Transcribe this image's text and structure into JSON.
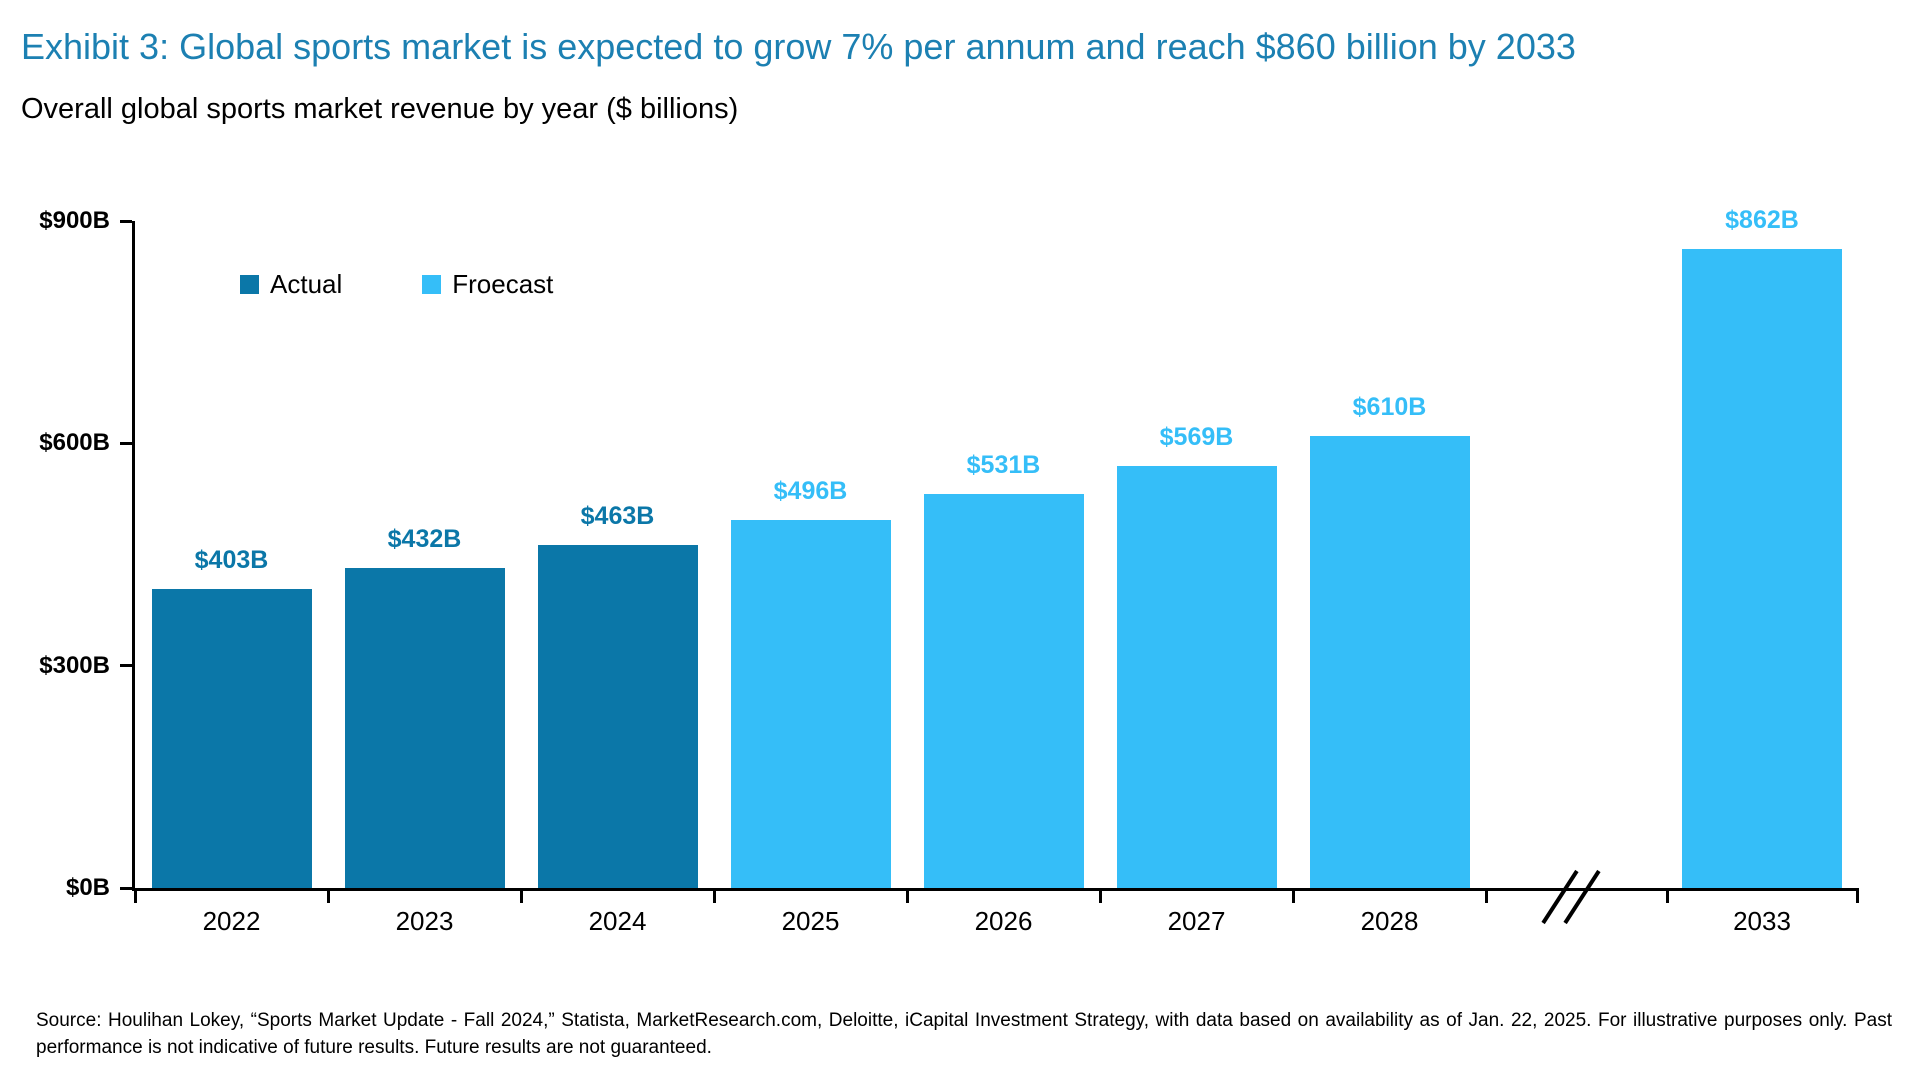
{
  "title": "Exhibit 3: Global sports market is expected to grow 7% per annum and reach $860 billion by 2033",
  "subtitle": "Overall global sports market revenue by year ($ billions)",
  "legend": [
    {
      "label": "Actual",
      "color": "#0B77A8"
    },
    {
      "label": "Froecast",
      "color": "#35BEF8"
    }
  ],
  "colors": {
    "actual": "#0B77A8",
    "forecast": "#35BEF8",
    "title": "#1C80B2",
    "axis": "#000000"
  },
  "source": "Source: Houlihan Lokey, “Sports Market Update - Fall 2024,” Statista, MarketResearch.com, Deloitte, iCapital Investment Strategy, with data based on availability as of Jan. 22, 2025. For illustrative purposes only. Past performance is not indicative of future results. Future results are not guaranteed.",
  "chart_data": {
    "type": "bar",
    "title": "Overall global sports market revenue by year ($ billions)",
    "xlabel": "",
    "ylabel": "",
    "categories": [
      "2022",
      "2023",
      "2024",
      "2025",
      "2026",
      "2027",
      "2028",
      "2033"
    ],
    "series": [
      {
        "name": "Actual",
        "values": [
          403,
          432,
          463,
          null,
          null,
          null,
          null,
          null
        ]
      },
      {
        "name": "Froecast",
        "values": [
          null,
          null,
          null,
          496,
          531,
          569,
          610,
          862
        ]
      }
    ],
    "value_labels": [
      "$403B",
      "$432B",
      "$463B",
      "$496B",
      "$531B",
      "$569B",
      "$610B",
      "$862B"
    ],
    "ylim": [
      0,
      900
    ],
    "yticks": [
      {
        "value": 0,
        "label": "$0B"
      },
      {
        "value": 300,
        "label": "$300B"
      },
      {
        "value": 600,
        "label": "$600B"
      },
      {
        "value": 900,
        "label": "$900B"
      }
    ],
    "grid": false,
    "legend_position": "top-left",
    "axis_break_after": "2028"
  }
}
